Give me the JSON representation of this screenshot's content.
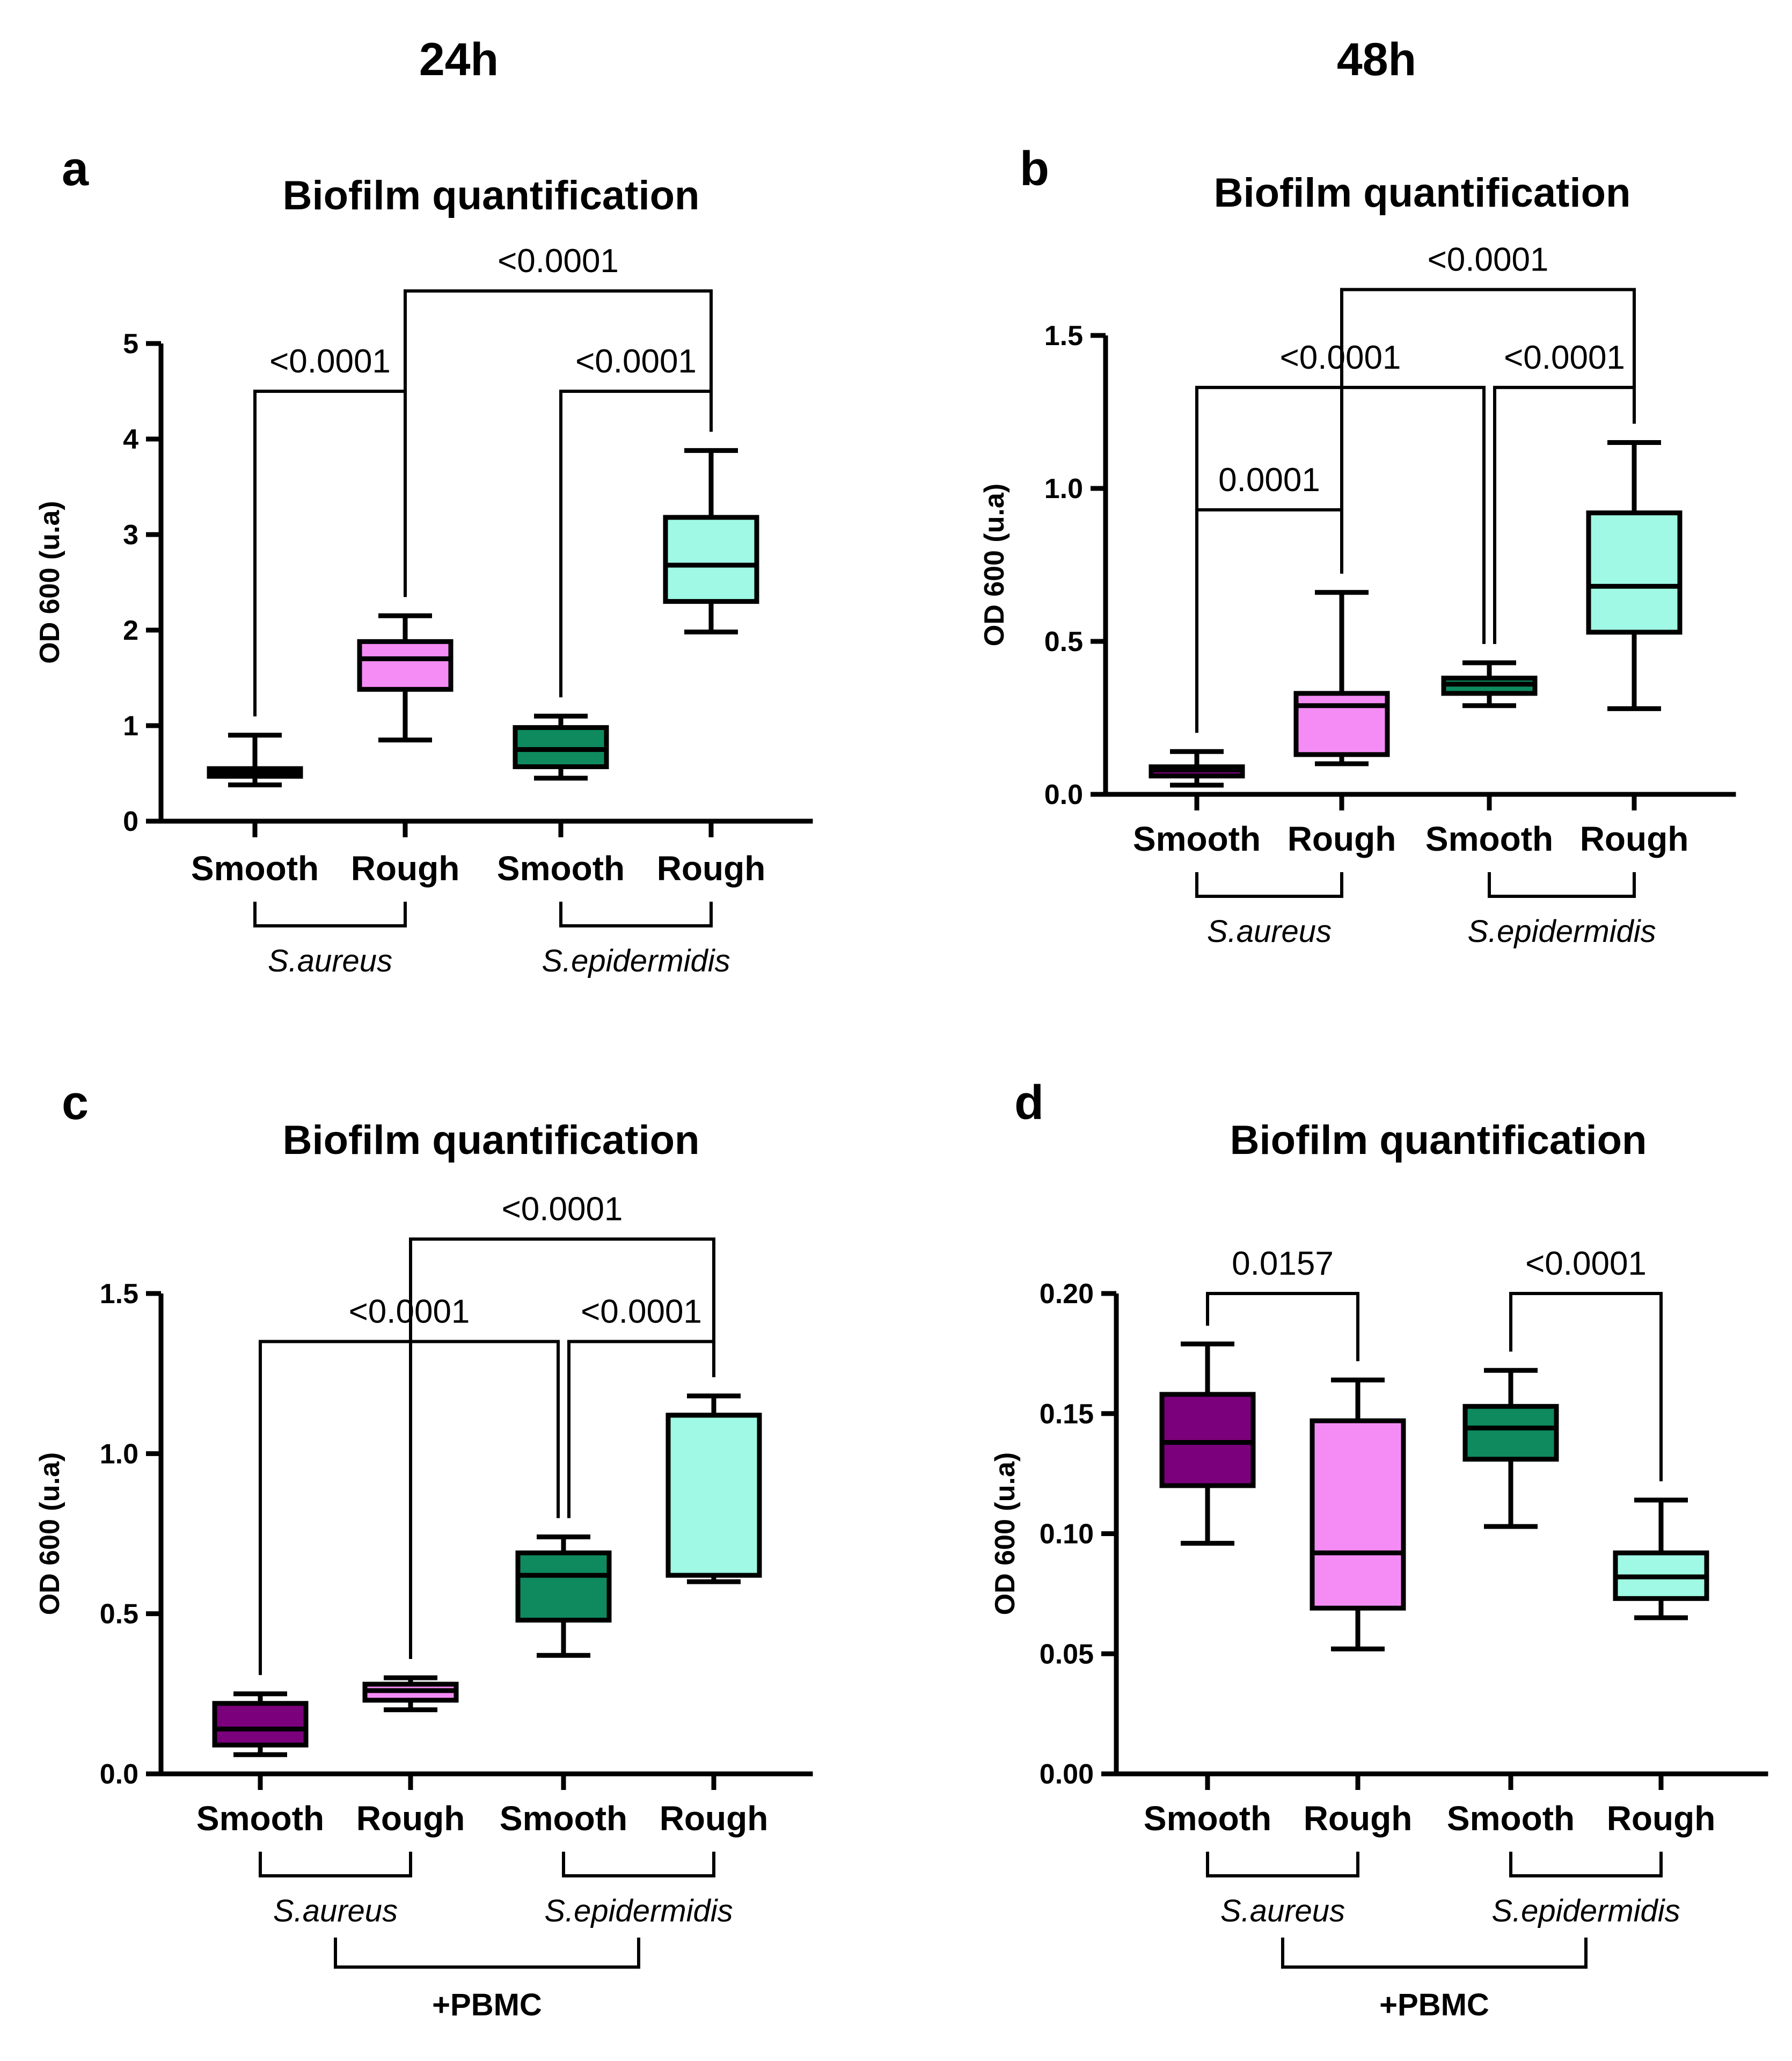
{
  "column_headers": [
    "24h",
    "48h"
  ],
  "colors": {
    "aureus_smooth": "#7b007b",
    "aureus_rough": "#f58cf5",
    "epi_smooth": "#0e8a5e",
    "epi_rough": "#9ff9e4",
    "aureus_smooth_24h_nopbmc": "#ffffff",
    "line": "#000000"
  },
  "chart_data": [
    {
      "label": "a",
      "title": "Biofilm quantification",
      "type": "boxplot",
      "ylabel": "OD 600 (u.a)",
      "ylim": [
        0,
        5
      ],
      "yticks": [
        "0",
        "1",
        "2",
        "3",
        "4",
        "5"
      ],
      "ytick_values": [
        0,
        1,
        2,
        3,
        4,
        5
      ],
      "categories": [
        "Smooth",
        "Rough",
        "Smooth",
        "Rough"
      ],
      "groups": [
        "S.aureus",
        "S.epidermidis"
      ],
      "extra_group": "",
      "boxes": [
        {
          "min": 0.38,
          "q1": 0.47,
          "median": 0.5,
          "q3": 0.55,
          "max": 0.9,
          "color": "#ffffff"
        },
        {
          "min": 0.85,
          "q1": 1.38,
          "median": 1.7,
          "q3": 1.88,
          "max": 2.15,
          "color": "#f58cf5"
        },
        {
          "min": 0.45,
          "q1": 0.57,
          "median": 0.75,
          "q3": 0.98,
          "max": 1.1,
          "color": "#0e8a5e"
        },
        {
          "min": 1.98,
          "q1": 2.3,
          "median": 2.68,
          "q3": 3.18,
          "max": 3.88,
          "color": "#9ff9e4"
        }
      ],
      "comparisons": [
        {
          "from": 0,
          "to": 1,
          "p": "<0.0001",
          "y": 4.5
        },
        {
          "from": 2,
          "to": 3,
          "p": "<0.0001",
          "y": 4.5
        },
        {
          "from": 1,
          "to": 3,
          "p": "<0.0001",
          "y": 5.55
        }
      ]
    },
    {
      "label": "b",
      "title": "Biofilm quantification",
      "type": "boxplot",
      "ylabel": "OD 600 (u.a)",
      "ylim": [
        0,
        1.5
      ],
      "yticks": [
        "0.0",
        "0.5",
        "1.0",
        "1.5"
      ],
      "ytick_values": [
        0,
        0.5,
        1.0,
        1.5
      ],
      "categories": [
        "Smooth",
        "Rough",
        "Smooth",
        "Rough"
      ],
      "groups": [
        "S.aureus",
        "S.epidermidis"
      ],
      "extra_group": "",
      "boxes": [
        {
          "min": 0.03,
          "q1": 0.06,
          "median": 0.08,
          "q3": 0.09,
          "max": 0.14,
          "color": "#7b007b"
        },
        {
          "min": 0.1,
          "q1": 0.13,
          "median": 0.29,
          "q3": 0.33,
          "max": 0.66,
          "color": "#f58cf5"
        },
        {
          "min": 0.29,
          "q1": 0.33,
          "median": 0.36,
          "q3": 0.38,
          "max": 0.43,
          "color": "#0e8a5e"
        },
        {
          "min": 0.28,
          "q1": 0.53,
          "median": 0.68,
          "q3": 0.92,
          "max": 1.15,
          "color": "#9ff9e4"
        }
      ],
      "comparisons": [
        {
          "from": 0,
          "to": 1,
          "p": "0.0001",
          "y": 0.93
        },
        {
          "from": 0,
          "to": 2,
          "p": "<0.0001",
          "y": 1.33
        },
        {
          "from": 2,
          "to": 3,
          "p": "<0.0001",
          "y": 1.33
        },
        {
          "from": 1,
          "to": 3,
          "p": "<0.0001",
          "y": 1.65
        }
      ]
    },
    {
      "label": "c",
      "title": "Biofilm quantification",
      "type": "boxplot",
      "ylabel": "OD 600 (u.a)",
      "ylim": [
        0,
        1.5
      ],
      "yticks": [
        "0.0",
        "0.5",
        "1.0",
        "1.5"
      ],
      "ytick_values": [
        0,
        0.5,
        1.0,
        1.5
      ],
      "categories": [
        "Smooth",
        "Rough",
        "Smooth",
        "Rough"
      ],
      "groups": [
        "S.aureus",
        "S.epidermidis"
      ],
      "extra_group": "+PBMC",
      "boxes": [
        {
          "min": 0.06,
          "q1": 0.09,
          "median": 0.14,
          "q3": 0.22,
          "max": 0.25,
          "color": "#7b007b"
        },
        {
          "min": 0.2,
          "q1": 0.23,
          "median": 0.26,
          "q3": 0.28,
          "max": 0.3,
          "color": "#f58cf5"
        },
        {
          "min": 0.37,
          "q1": 0.48,
          "median": 0.62,
          "q3": 0.69,
          "max": 0.74,
          "color": "#0e8a5e"
        },
        {
          "min": 0.6,
          "q1": 0.62,
          "median": 1.12,
          "q3": 1.12,
          "max": 1.18,
          "color": "#9ff9e4"
        }
      ],
      "comparisons": [
        {
          "from": 0,
          "to": 2,
          "p": "<0.0001",
          "y": 1.35
        },
        {
          "from": 2,
          "to": 3,
          "p": "<0.0001",
          "y": 1.35
        },
        {
          "from": 1,
          "to": 3,
          "p": "<0.0001",
          "y": 1.67
        }
      ]
    },
    {
      "label": "d",
      "title": "Biofilm quantification",
      "type": "boxplot",
      "ylabel": "OD 600 (u.a)",
      "ylim": [
        0,
        0.2
      ],
      "yticks": [
        "0.00",
        "0.05",
        "0.10",
        "0.15",
        "0.20"
      ],
      "ytick_values": [
        0,
        0.05,
        0.1,
        0.15,
        0.2
      ],
      "categories": [
        "Smooth",
        "Rough",
        "Smooth",
        "Rough"
      ],
      "groups": [
        "S.aureus",
        "S.epidermidis"
      ],
      "extra_group": "+PBMC",
      "boxes": [
        {
          "min": 0.096,
          "q1": 0.12,
          "median": 0.138,
          "q3": 0.158,
          "max": 0.179,
          "color": "#7b007b"
        },
        {
          "min": 0.052,
          "q1": 0.069,
          "median": 0.092,
          "q3": 0.147,
          "max": 0.164,
          "color": "#f58cf5"
        },
        {
          "min": 0.103,
          "q1": 0.131,
          "median": 0.144,
          "q3": 0.153,
          "max": 0.168,
          "color": "#0e8a5e"
        },
        {
          "min": 0.065,
          "q1": 0.073,
          "median": 0.082,
          "q3": 0.092,
          "max": 0.114,
          "color": "#9ff9e4"
        }
      ],
      "comparisons": [
        {
          "from": 0,
          "to": 1,
          "p": "0.0157",
          "y": 0.2
        },
        {
          "from": 2,
          "to": 3,
          "p": "<0.0001",
          "y": 0.2
        }
      ]
    }
  ]
}
